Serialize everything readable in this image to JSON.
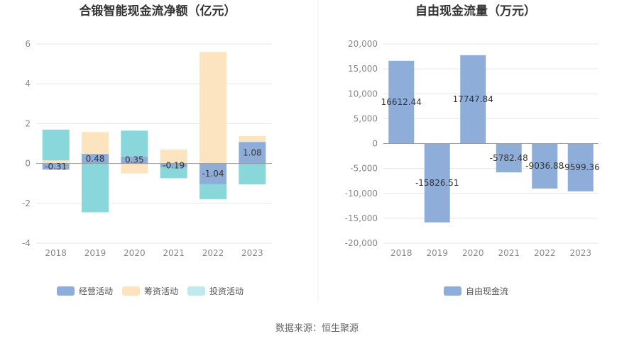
{
  "source": "数据来源：恒生聚源",
  "chart_data": [
    {
      "type": "bar",
      "stacked": true,
      "title": "合锻智能现金流净额（亿元）",
      "categories": [
        "2018",
        "2019",
        "2020",
        "2021",
        "2022",
        "2023"
      ],
      "ylim": [
        -4,
        6
      ],
      "yticks": [
        -4,
        -2,
        0,
        2,
        4,
        6
      ],
      "ytick_labels": [
        "-4",
        "-2",
        "0",
        "2",
        "4",
        "6"
      ],
      "grid": true,
      "legend": "bottom",
      "series": [
        {
          "name": "经营活动",
          "color": "#8eadd9",
          "values": [
            -0.31,
            0.48,
            0.35,
            -0.19,
            -1.04,
            1.08
          ],
          "labels": [
            "-0.31",
            "0.48",
            "0.35",
            "-0.19",
            "-1.04",
            "1.08"
          ]
        },
        {
          "name": "筹资活动",
          "color": "#fde4c0",
          "values": [
            0.15,
            1.1,
            -0.5,
            0.7,
            5.6,
            0.3
          ]
        },
        {
          "name": "投资活动",
          "color": "#8ad7db",
          "legend_color": "#bfe9ec",
          "values": [
            1.55,
            -2.45,
            1.3,
            -0.55,
            -0.75,
            -1.05
          ]
        }
      ]
    },
    {
      "type": "bar",
      "title": "自由现金流量（万元）",
      "categories": [
        "2018",
        "2019",
        "2020",
        "2021",
        "2022",
        "2023"
      ],
      "ylim": [
        -20000,
        20000
      ],
      "yticks": [
        -20000,
        -15000,
        -10000,
        -5000,
        0,
        5000,
        10000,
        15000,
        20000
      ],
      "ytick_labels": [
        "-20,000",
        "-15,000",
        "-10,000",
        "-5,000",
        "0",
        "5,000",
        "10,000",
        "15,000",
        "20,000"
      ],
      "grid": true,
      "legend": "bottom",
      "series": [
        {
          "name": "自由现金流",
          "color": "#8eadd9",
          "values": [
            16612.44,
            -15826.51,
            17747.84,
            -5782.48,
            -9036.88,
            -9599.36
          ],
          "labels": [
            "16612.44",
            "-15826.51",
            "17747.84",
            "-5782.48",
            "-9036.88",
            "-9599.36"
          ]
        }
      ]
    }
  ]
}
